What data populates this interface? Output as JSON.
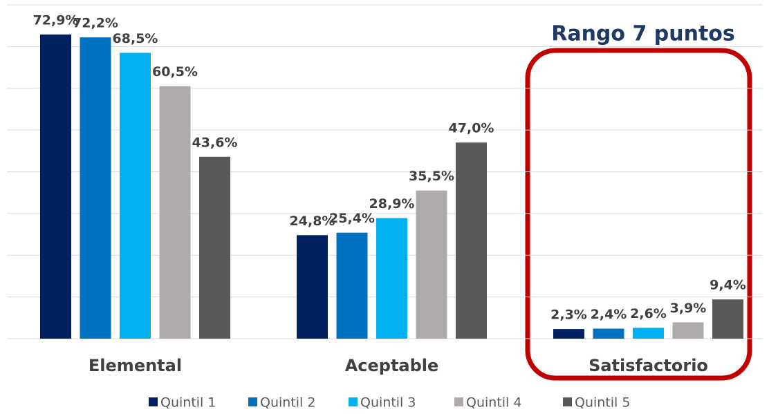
{
  "chart_data": {
    "type": "bar",
    "annotation": "Rango 7 puntos",
    "categories": [
      "Elemental",
      "Aceptable",
      "Satisfactorio"
    ],
    "series": [
      {
        "name": "Quintil 1",
        "color": "#002060",
        "values": [
          72.9,
          24.8,
          2.3
        ],
        "value_labels": [
          "72,9%",
          "24,8%",
          "2,3%"
        ]
      },
      {
        "name": "Quintil 2",
        "color": "#0070c0",
        "values": [
          72.2,
          25.4,
          2.4
        ],
        "value_labels": [
          "72,2%",
          "25,4%",
          "2,4%"
        ]
      },
      {
        "name": "Quintil 3",
        "color": "#00b0f0",
        "values": [
          68.5,
          28.9,
          2.6
        ],
        "value_labels": [
          "68,5%",
          "28,9%",
          "2,6%"
        ]
      },
      {
        "name": "Quintil 4",
        "color": "#aeaaaa",
        "values": [
          60.5,
          35.5,
          3.9
        ],
        "value_labels": [
          "60,5%",
          "35,5%",
          "3,9%"
        ]
      },
      {
        "name": "Quintil 5",
        "color": "#595959",
        "values": [
          43.6,
          47.0,
          9.4
        ],
        "value_labels": [
          "43,6%",
          "47,0%",
          "9,4%"
        ]
      }
    ],
    "ylim": [
      0,
      80
    ],
    "yticks": [
      0,
      10,
      20,
      30,
      40,
      50,
      60,
      70,
      80
    ],
    "grid": true
  }
}
